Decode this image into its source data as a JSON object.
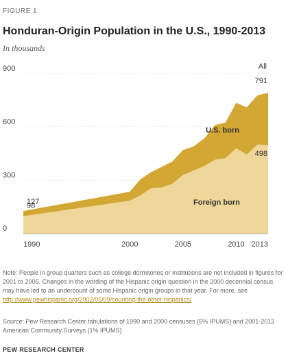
{
  "figure": {
    "label": "FIGURE 1"
  },
  "colors": {
    "total": "#d2a733",
    "foreign": "#efd79a",
    "grid": "#dddddd",
    "axis": "#666666",
    "link": "#b08a1a"
  },
  "chart_data": {
    "type": "area",
    "title": "Honduran-Origin  Population in the U.S., 1990-2013",
    "subtitle": "In thousands",
    "xlabel": "",
    "ylabel": "",
    "x": [
      1990,
      2000,
      2001,
      2002,
      2003,
      2004,
      2005,
      2006,
      2007,
      2008,
      2009,
      2010,
      2011,
      2012,
      2013
    ],
    "x_ticks": [
      1990,
      2000,
      2005,
      2010,
      2013
    ],
    "ylim": [
      0,
      900
    ],
    "y_ticks": [
      0,
      300,
      600,
      900
    ],
    "grid": true,
    "series": [
      {
        "name": "All",
        "values": [
          127,
          235,
          305,
          345,
          375,
          405,
          470,
          490,
          535,
          610,
          625,
          735,
          710,
          778,
          791
        ]
      },
      {
        "name": "Foreign born",
        "values": [
          98,
          185,
          215,
          255,
          260,
          280,
          330,
          355,
          380,
          415,
          425,
          480,
          445,
          500,
          498
        ]
      }
    ],
    "series_labels": {
      "total": "All",
      "us_born": "U.S. born",
      "foreign": "Foreign born"
    },
    "annotations": [
      {
        "text": "127",
        "x": 1990,
        "series": "All"
      },
      {
        "text": "98",
        "x": 1990,
        "series": "Foreign born"
      },
      {
        "text": "791",
        "x": 2013,
        "series": "All"
      },
      {
        "text": "498",
        "x": 2013,
        "series": "Foreign born"
      }
    ]
  },
  "note": {
    "text": "Note: People in group quarters such as college dormitories or institutions are not included in figures for 2001 to 2005.  Changes in the wording of the Hispanic origin question in the 2000 decennial census may have led to an undercount of some Hispanic origin groups in that year. For more, see ",
    "link": "http://www.pewhispanic.org/2002/05/09/counting-the-other-hispanics/"
  },
  "source": "Source: Pew Research Center tabulations of 1990 and 2000 censuses (5% IPUMS) and 2001-2013 American Community Surveys (1% IPUMS)",
  "org": "PEW RESEARCH CENTER"
}
